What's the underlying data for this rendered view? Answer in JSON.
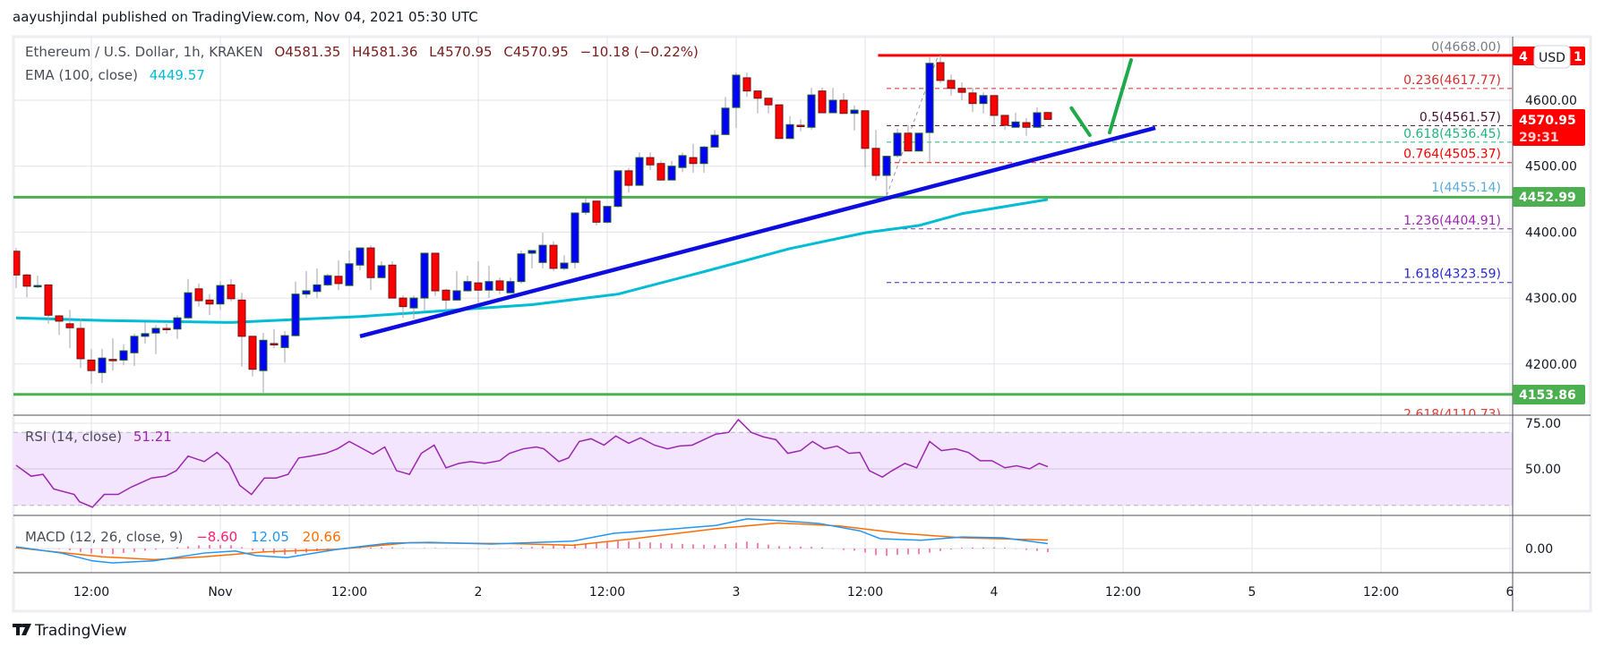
{
  "header": {
    "published": "aayushjindal published on TradingView.com, Nov 04, 2021 05:30 UTC"
  },
  "legend": {
    "symbol": "Ethereum / U.S. Dollar, 1h, KRAKEN",
    "open": "O4581.35",
    "high": "H4581.36",
    "low": "L4570.95",
    "close": "C4570.95",
    "change": "−10.18 (−0.22%)",
    "ema_label": "EMA (100, close)",
    "ema_value": "4449.57",
    "rsi_label": "RSI (14, close)",
    "rsi_value": "51.21",
    "macd_label": "MACD (12, 26, close, 9)",
    "macd_hist": "−8.60",
    "macd_value": "12.05",
    "macd_signal": "20.66"
  },
  "price_tags": {
    "current": {
      "value": "4570.95",
      "countdown": "29:31"
    },
    "resistance_left": "4",
    "resistance_right": "1",
    "currency": "USD",
    "support_upper": "4452.99",
    "support_lower": "4153.86"
  },
  "footer": {
    "brand": "TradingView"
  },
  "colors": {
    "up": "#0000ff",
    "down": "#ff0000",
    "ema": "#00bcd4",
    "trend": "#0d0de0",
    "support": "#4caf50",
    "resistance": "#ff0000",
    "arrow": "#1faa4a",
    "rsi": "#9c27b0",
    "macd": "#2196f3",
    "signal": "#ff6d00",
    "hist": "#ff2d78"
  },
  "chart_data": {
    "type": "candlestick",
    "title": "Ethereum / U.S. Dollar, 1h, KRAKEN",
    "interval": "1h",
    "x_tick_labels": [
      "12:00",
      "Nov",
      "12:00",
      "2",
      "12:00",
      "3",
      "12:00",
      "4",
      "12:00",
      "5",
      "12:00",
      "6"
    ],
    "y_ticks": [
      {
        "value": 4600,
        "label": "4600.00"
      },
      {
        "value": 4500,
        "label": "4500.00"
      },
      {
        "value": 4400,
        "label": "4400.00"
      },
      {
        "value": 4300,
        "label": "4300.00"
      },
      {
        "value": 4200,
        "label": "4200.00"
      }
    ],
    "ylim": [
      4113,
      4687
    ],
    "grid": true,
    "ohlc_order": [
      "open",
      "high",
      "low",
      "close"
    ],
    "candles": [
      [
        4371,
        4376,
        4315,
        4335
      ],
      [
        4335,
        4337,
        4301,
        4318
      ],
      [
        4318,
        4334,
        4315,
        4319
      ],
      [
        4320,
        4320,
        4261,
        4274
      ],
      [
        4273,
        4274,
        4244,
        4265
      ],
      [
        4261,
        4282,
        4224,
        4255
      ],
      [
        4254,
        4269,
        4194,
        4208
      ],
      [
        4206,
        4223,
        4170,
        4190
      ],
      [
        4187,
        4223,
        4171,
        4209
      ],
      [
        4207,
        4239,
        4190,
        4206
      ],
      [
        4206,
        4230,
        4198,
        4220
      ],
      [
        4217,
        4246,
        4197,
        4242
      ],
      [
        4242,
        4263,
        4231,
        4246
      ],
      [
        4247,
        4259,
        4215,
        4254
      ],
      [
        4254,
        4261,
        4246,
        4253
      ],
      [
        4253,
        4274,
        4238,
        4270
      ],
      [
        4270,
        4329,
        4268,
        4308
      ],
      [
        4314,
        4322,
        4287,
        4296
      ],
      [
        4297,
        4306,
        4274,
        4291
      ],
      [
        4291,
        4326,
        4282,
        4319
      ],
      [
        4320,
        4329,
        4295,
        4299
      ],
      [
        4297,
        4308,
        4196,
        4242
      ],
      [
        4242,
        4242,
        4181,
        4192
      ],
      [
        4190,
        4247,
        4155,
        4236
      ],
      [
        4231,
        4253,
        4224,
        4230
      ],
      [
        4225,
        4250,
        4202,
        4243
      ],
      [
        4243,
        4325,
        4242,
        4306
      ],
      [
        4306,
        4341,
        4300,
        4311
      ],
      [
        4310,
        4345,
        4300,
        4320
      ],
      [
        4320,
        4337,
        4318,
        4334
      ],
      [
        4333,
        4357,
        4312,
        4322
      ],
      [
        4319,
        4372,
        4319,
        4352
      ],
      [
        4350,
        4376,
        4342,
        4376
      ],
      [
        4376,
        4380,
        4312,
        4331
      ],
      [
        4331,
        4356,
        4330,
        4349
      ],
      [
        4350,
        4356,
        4300,
        4300
      ],
      [
        4300,
        4304,
        4270,
        4287
      ],
      [
        4285,
        4304,
        4268,
        4300
      ],
      [
        4300,
        4368,
        4281,
        4368
      ],
      [
        4368,
        4368,
        4303,
        4311
      ],
      [
        4312,
        4314,
        4281,
        4297
      ],
      [
        4297,
        4341,
        4296,
        4311
      ],
      [
        4311,
        4334,
        4310,
        4325
      ],
      [
        4323,
        4356,
        4291,
        4312
      ],
      [
        4312,
        4349,
        4300,
        4325
      ],
      [
        4326,
        4331,
        4306,
        4312
      ],
      [
        4308,
        4331,
        4308,
        4325
      ],
      [
        4325,
        4372,
        4322,
        4367
      ],
      [
        4368,
        4372,
        4345,
        4372
      ],
      [
        4354,
        4399,
        4345,
        4380
      ],
      [
        4380,
        4386,
        4341,
        4345
      ],
      [
        4345,
        4365,
        4342,
        4353
      ],
      [
        4354,
        4429,
        4345,
        4429
      ],
      [
        4430,
        4451,
        4426,
        4444
      ],
      [
        4447,
        4447,
        4410,
        4415
      ],
      [
        4415,
        4439,
        4413,
        4439
      ],
      [
        4439,
        4493,
        4437,
        4493
      ],
      [
        4493,
        4497,
        4460,
        4471
      ],
      [
        4471,
        4521,
        4471,
        4513
      ],
      [
        4513,
        4521,
        4494,
        4502
      ],
      [
        4504,
        4508,
        4479,
        4479
      ],
      [
        4479,
        4508,
        4479,
        4500
      ],
      [
        4498,
        4521,
        4491,
        4516
      ],
      [
        4513,
        4534,
        4490,
        4504
      ],
      [
        4504,
        4531,
        4490,
        4529
      ],
      [
        4529,
        4555,
        4529,
        4547
      ],
      [
        4548,
        4605,
        4548,
        4588
      ],
      [
        4589,
        4642,
        4558,
        4638
      ],
      [
        4634,
        4642,
        4605,
        4614
      ],
      [
        4614,
        4614,
        4580,
        4603
      ],
      [
        4603,
        4603,
        4580,
        4593
      ],
      [
        4593,
        4593,
        4542,
        4542
      ],
      [
        4542,
        4576,
        4542,
        4563
      ],
      [
        4562,
        4571,
        4553,
        4561
      ],
      [
        4559,
        4619,
        4555,
        4608
      ],
      [
        4614,
        4619,
        4581,
        4581
      ],
      [
        4581,
        4619,
        4581,
        4600
      ],
      [
        4600,
        4611,
        4580,
        4580
      ],
      [
        4580,
        4592,
        4554,
        4585
      ],
      [
        4584,
        4584,
        4498,
        4527
      ],
      [
        4527,
        4555,
        4478,
        4486
      ],
      [
        4486,
        4516,
        4455,
        4515
      ],
      [
        4516,
        4557,
        4513,
        4550
      ],
      [
        4550,
        4562,
        4523,
        4523
      ],
      [
        4523,
        4550,
        4523,
        4550
      ],
      [
        4551,
        4665,
        4506,
        4656
      ],
      [
        4657,
        4668,
        4626,
        4630
      ],
      [
        4630,
        4639,
        4607,
        4618
      ],
      [
        4618,
        4627,
        4600,
        4612
      ],
      [
        4611,
        4619,
        4582,
        4595
      ],
      [
        4595,
        4612,
        4580,
        4607
      ],
      [
        4607,
        4607,
        4562,
        4577
      ],
      [
        4577,
        4577,
        4555,
        4562
      ],
      [
        4559,
        4581,
        4559,
        4567
      ],
      [
        4566,
        4573,
        4546,
        4559
      ],
      [
        4559,
        4589,
        4559,
        4581
      ],
      [
        4581.35,
        4581.36,
        4570.95,
        4570.95
      ]
    ],
    "ema100": [
      [
        0,
        4270
      ],
      [
        8,
        4266
      ],
      [
        20,
        4263
      ],
      [
        32,
        4272
      ],
      [
        40,
        4281
      ],
      [
        48,
        4290
      ],
      [
        56,
        4306
      ],
      [
        64,
        4340
      ],
      [
        72,
        4375
      ],
      [
        79,
        4399
      ],
      [
        84,
        4410
      ],
      [
        88,
        4428
      ],
      [
        96,
        4449.57
      ]
    ],
    "support_levels": [
      4452.99,
      4153.86
    ],
    "resistance": {
      "price": 4668,
      "from_index": 80.2
    },
    "trend_line": {
      "from": [
        32,
        4242
      ],
      "to": [
        106,
        4558
      ]
    },
    "arrows": [
      {
        "from": [
          98.2,
          4588
        ],
        "to": [
          99.9,
          4547
        ]
      },
      {
        "from": [
          101.75,
          4551
        ],
        "to": [
          103.75,
          4661
        ]
      }
    ],
    "fib": {
      "anchor_from": [
        81,
        4455.14
      ],
      "anchor_to": [
        85.8,
        4668
      ],
      "start_index": 81,
      "levels": [
        {
          "label": "0(4668.00)",
          "price": 4668.0,
          "color": "#787b86",
          "dashed": false
        },
        {
          "label": "0.236(4617.77)",
          "price": 4617.77,
          "color": "#d32f2f",
          "dashed": true
        },
        {
          "label": "0.5(4561.57)",
          "price": 4561.57,
          "color": "#4a1030",
          "dashed": true
        },
        {
          "label": "0.618(4536.45)",
          "price": 4536.45,
          "color": "#22b47c",
          "dashed": true
        },
        {
          "label": "0.764(4505.37)",
          "price": 4505.37,
          "color": "#ff0000",
          "dashed": true
        },
        {
          "label": "1(4455.14)",
          "price": 4455.14,
          "color": "#5aa9dc",
          "dashed": false
        },
        {
          "label": "1.236(4404.91)",
          "price": 4404.91,
          "color": "#9c27b0",
          "dashed": true
        },
        {
          "label": "1.618(4323.59)",
          "price": 4323.59,
          "color": "#2a2ad0",
          "dashed": true
        },
        {
          "label": "2.618(4110.73)",
          "price": 4110.73,
          "color": "#e53935",
          "dashed": true
        }
      ]
    },
    "rsi": {
      "ticks": [
        {
          "value": 75,
          "label": "75.00"
        },
        {
          "value": 50,
          "label": "50.00"
        }
      ],
      "band": [
        30,
        70
      ],
      "points": [
        [
          0,
          52
        ],
        [
          1.4,
          46
        ],
        [
          2.5,
          47
        ],
        [
          3.5,
          39
        ],
        [
          5.4,
          36
        ],
        [
          5.9,
          32
        ],
        [
          7.1,
          29
        ],
        [
          8.2,
          36
        ],
        [
          9.5,
          36
        ],
        [
          10.7,
          40
        ],
        [
          12.6,
          45
        ],
        [
          13.9,
          46
        ],
        [
          14.9,
          49
        ],
        [
          16,
          57
        ],
        [
          17.5,
          54
        ],
        [
          18.7,
          59
        ],
        [
          19.8,
          53
        ],
        [
          20.8,
          41
        ],
        [
          21.9,
          36
        ],
        [
          23.1,
          45
        ],
        [
          24.2,
          45
        ],
        [
          25.3,
          47
        ],
        [
          26.3,
          56
        ],
        [
          27.4,
          57
        ],
        [
          28.8,
          58.5
        ],
        [
          29.9,
          61
        ],
        [
          31,
          65
        ],
        [
          31.8,
          62.5
        ],
        [
          33.2,
          58
        ],
        [
          34.3,
          62
        ],
        [
          35.4,
          49
        ],
        [
          36.6,
          47
        ],
        [
          37.7,
          58.5
        ],
        [
          38.9,
          63
        ],
        [
          40,
          50.6
        ],
        [
          41.2,
          53
        ],
        [
          42.3,
          54
        ],
        [
          43.6,
          53
        ],
        [
          45,
          54.5
        ],
        [
          45.9,
          58.5
        ],
        [
          47.2,
          61
        ],
        [
          48.4,
          62
        ],
        [
          49.1,
          61
        ],
        [
          50.5,
          54
        ],
        [
          51.4,
          56
        ],
        [
          52.4,
          65
        ],
        [
          53.5,
          66.5
        ],
        [
          54.7,
          63
        ],
        [
          55.8,
          68
        ],
        [
          57,
          64
        ],
        [
          58.1,
          67
        ],
        [
          59.4,
          63
        ],
        [
          60.6,
          61
        ],
        [
          61.7,
          62.5
        ],
        [
          62.9,
          63
        ],
        [
          64,
          66
        ],
        [
          65.1,
          69
        ],
        [
          66.3,
          70
        ],
        [
          67.2,
          77
        ],
        [
          68.4,
          70
        ],
        [
          69.5,
          67.6
        ],
        [
          70.7,
          66
        ],
        [
          71.8,
          58.5
        ],
        [
          73,
          60
        ],
        [
          74.1,
          65
        ],
        [
          75.2,
          61
        ],
        [
          76.4,
          62.5
        ],
        [
          77.5,
          58.5
        ],
        [
          78.5,
          59
        ],
        [
          79.4,
          49
        ],
        [
          80.6,
          45.5
        ],
        [
          81.5,
          49
        ],
        [
          82.7,
          53
        ],
        [
          83.8,
          50.6
        ],
        [
          85,
          65
        ],
        [
          86.1,
          60
        ],
        [
          87.4,
          61
        ],
        [
          88.6,
          59
        ],
        [
          89.7,
          54.5
        ],
        [
          90.8,
          54.5
        ],
        [
          92,
          50.6
        ],
        [
          93.1,
          51.7
        ],
        [
          94.3,
          50
        ],
        [
          95.2,
          53
        ],
        [
          96,
          51.21
        ]
      ]
    },
    "macd": {
      "ticks": [
        {
          "value": 0,
          "label": "0.00"
        }
      ],
      "macd": [
        [
          0,
          4
        ],
        [
          4.2,
          -11
        ],
        [
          7.1,
          -30
        ],
        [
          9,
          -35
        ],
        [
          12.8,
          -30
        ],
        [
          17.5,
          -11
        ],
        [
          20.4,
          -6
        ],
        [
          22.3,
          -17
        ],
        [
          25.2,
          -22
        ],
        [
          29.9,
          -2
        ],
        [
          34.7,
          13
        ],
        [
          38.5,
          15
        ],
        [
          44.2,
          11
        ],
        [
          51.8,
          18
        ],
        [
          55.6,
          37
        ],
        [
          60.4,
          46
        ],
        [
          65.1,
          56
        ],
        [
          68,
          72
        ],
        [
          70.9,
          68
        ],
        [
          74.7,
          61
        ],
        [
          78.5,
          43
        ],
        [
          80.4,
          24
        ],
        [
          84.2,
          20
        ],
        [
          88,
          28
        ],
        [
          91.8,
          26
        ],
        [
          96,
          12.05
        ]
      ],
      "signal": [
        [
          0,
          2
        ],
        [
          8,
          -20
        ],
        [
          12.8,
          -27
        ],
        [
          17.5,
          -20
        ],
        [
          23.3,
          -8
        ],
        [
          29.9,
          -2
        ],
        [
          36.6,
          14
        ],
        [
          46.1,
          12
        ],
        [
          51.8,
          8
        ],
        [
          57.5,
          24
        ],
        [
          65.1,
          48
        ],
        [
          70.9,
          62
        ],
        [
          76.6,
          55
        ],
        [
          82.3,
          37
        ],
        [
          88,
          26
        ],
        [
          96,
          20.66
        ]
      ]
    }
  }
}
